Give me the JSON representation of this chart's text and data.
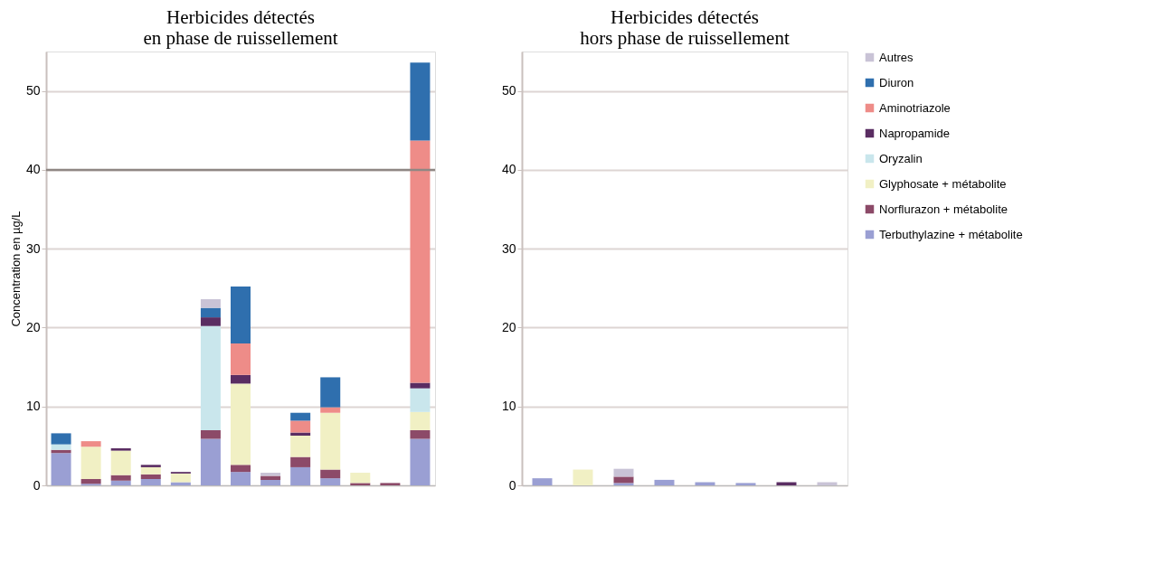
{
  "chart_data": [
    {
      "type": "bar",
      "stacked": true,
      "title": "Herbicides détectés\nen phase de ruissellement",
      "ylabel": "Concentration en µg/L",
      "categories": [
        null,
        null,
        null,
        null,
        null,
        null,
        null,
        null,
        null,
        null,
        null,
        null,
        null
      ],
      "ylim": [
        0,
        55
      ],
      "yticks": [
        0,
        10,
        20,
        30,
        40,
        50
      ],
      "grid": "y",
      "legend": false,
      "tick_labels": "y",
      "ref_lines": [
        {
          "axis": "y",
          "value": 40,
          "color": "#8f8784"
        }
      ],
      "series": [
        {
          "color": "#9a9fd3",
          "values": [
            4.1,
            0.2,
            0.6,
            0.8,
            0.4,
            5.9,
            1.7,
            0.7,
            2.3,
            0.9,
            null,
            null,
            5.9
          ]
        },
        {
          "color": "#8c4a68",
          "values": [
            0.4,
            0.6,
            0.7,
            0.6,
            null,
            1.1,
            0.9,
            0.5,
            1.3,
            1.1,
            0.3,
            0.3,
            1.1
          ]
        },
        {
          "color": "#f1f0c4",
          "values": [
            null,
            4.1,
            3.1,
            0.9,
            1.1,
            null,
            10.3,
            null,
            2.7,
            7.2,
            1.3,
            null,
            2.3
          ]
        },
        {
          "color": "#c9e6ec",
          "values": [
            0.7,
            null,
            null,
            null,
            null,
            13.2,
            null,
            null,
            null,
            null,
            null,
            null,
            3.0
          ]
        },
        {
          "color": "#5a2d62",
          "values": [
            null,
            null,
            0.3,
            0.3,
            0.2,
            1.1,
            1.1,
            null,
            0.4,
            null,
            null,
            null,
            0.7
          ]
        },
        {
          "color": "#ee8c88",
          "values": [
            null,
            0.7,
            null,
            null,
            null,
            null,
            4.0,
            null,
            1.5,
            0.7,
            null,
            null,
            30.7
          ]
        },
        {
          "color": "#2f6fae",
          "values": [
            1.4,
            null,
            null,
            null,
            null,
            1.2,
            7.2,
            null,
            1.0,
            3.8,
            null,
            null,
            9.9
          ]
        },
        {
          "color": "#c9c3d6",
          "values": [
            null,
            null,
            null,
            null,
            null,
            1.1,
            null,
            0.4,
            null,
            null,
            null,
            null,
            null
          ]
        }
      ]
    },
    {
      "type": "bar",
      "stacked": true,
      "title": "Herbicides détectés\nhors phase de ruissellement",
      "categories": [
        null,
        null,
        null,
        null,
        null,
        null,
        null,
        null
      ],
      "ylim": [
        0,
        55
      ],
      "yticks": [
        0,
        10,
        20,
        30,
        40,
        50
      ],
      "grid": "y",
      "legend": "right",
      "tick_labels": "y",
      "series": [
        {
          "name": "Terbuthylazine + métabolite",
          "color": "#9a9fd3",
          "values": [
            0.9,
            null,
            0.3,
            0.7,
            0.4,
            0.3,
            null,
            null
          ]
        },
        {
          "name": "Norflurazon + métabolite",
          "color": "#8c4a68",
          "values": [
            null,
            null,
            0.8,
            null,
            null,
            null,
            null,
            null
          ]
        },
        {
          "name": "Glyphosate + métabolite",
          "color": "#f1f0c4",
          "values": [
            null,
            2.0,
            null,
            null,
            null,
            null,
            null,
            null
          ]
        },
        {
          "name": "Oryzalin",
          "color": "#c9e6ec",
          "values": [
            null,
            null,
            null,
            null,
            null,
            null,
            null,
            null
          ]
        },
        {
          "name": "Napropamide",
          "color": "#5a2d62",
          "values": [
            null,
            null,
            null,
            null,
            null,
            null,
            0.4,
            null
          ]
        },
        {
          "name": "Aminotriazole",
          "color": "#ee8c88",
          "values": [
            null,
            null,
            null,
            null,
            null,
            null,
            null,
            null
          ]
        },
        {
          "name": "Diuron",
          "color": "#2f6fae",
          "values": [
            null,
            null,
            null,
            null,
            null,
            null,
            null,
            null
          ]
        },
        {
          "name": "Autres",
          "color": "#c9c3d6",
          "values": [
            null,
            null,
            1.0,
            null,
            null,
            null,
            null,
            0.4
          ]
        }
      ]
    }
  ]
}
